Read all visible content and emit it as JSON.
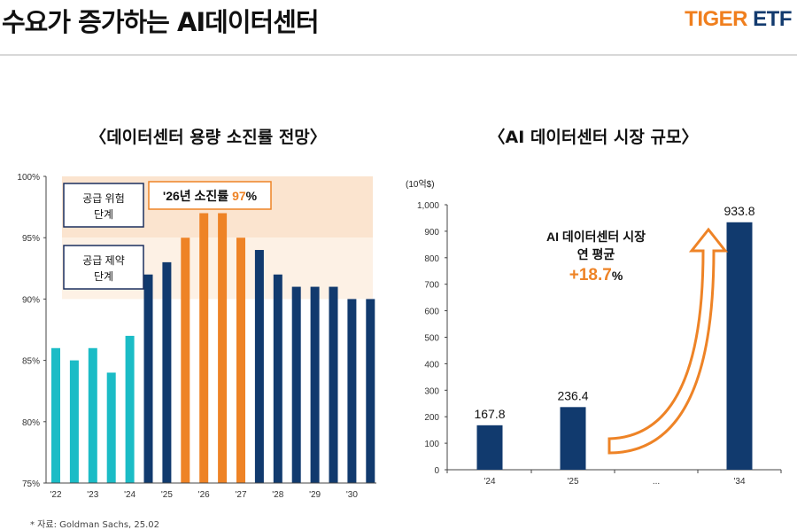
{
  "header": {
    "title": "수요가 증가하는 AI데이터센터",
    "logo_primary": "TIGER",
    "logo_secondary": "ETF"
  },
  "source": "* 자료: Goldman Sachs, 25.02",
  "colors": {
    "cyan": "#1bbcc6",
    "navy": "#113a6e",
    "orange": "#ee8326",
    "band_risk": "#fbe4cf",
    "band_constraint": "#fdf1e5"
  },
  "chart_data": [
    {
      "type": "bar",
      "title": "〈데이터센터 용량 소진률 전망〉",
      "ylim": [
        75,
        100
      ],
      "yticks": [
        "75%",
        "80%",
        "85%",
        "90%",
        "95%",
        "100%"
      ],
      "ytick_values": [
        75,
        80,
        85,
        90,
        95,
        100
      ],
      "xtick_labels": [
        "'22",
        "'23",
        "'24",
        "'25",
        "'26",
        "'27",
        "'28",
        "'29",
        "'30"
      ],
      "values": [
        86,
        85,
        86,
        84,
        87,
        92,
        93,
        95,
        97,
        97,
        95,
        94,
        92,
        91,
        91,
        91,
        90,
        90
      ],
      "bar_colors": [
        "cyan",
        "cyan",
        "cyan",
        "cyan",
        "cyan",
        "navy",
        "navy",
        "orange",
        "orange",
        "orange",
        "orange",
        "navy",
        "navy",
        "navy",
        "navy",
        "navy",
        "navy",
        "navy"
      ],
      "bands": [
        {
          "label": "공급 위험\n단계",
          "line1": "공급 위험",
          "line2": "단계",
          "range": [
            95,
            100
          ]
        },
        {
          "label": "공급 제약\n단계",
          "line1": "공급 제약",
          "line2": "단계",
          "range": [
            90,
            95
          ]
        }
      ],
      "annotation": {
        "prefix": "'26년 소진률 ",
        "highlight": "97",
        "suffix": "%"
      }
    },
    {
      "type": "bar",
      "title": "〈AI 데이터센터 시장 규모〉",
      "unit": "(10억$)",
      "ylim": [
        0,
        1000
      ],
      "yticks": [
        "0",
        "100",
        "200",
        "300",
        "400",
        "500",
        "600",
        "700",
        "800",
        "900",
        "1,000"
      ],
      "ytick_values": [
        0,
        100,
        200,
        300,
        400,
        500,
        600,
        700,
        800,
        900,
        1000
      ],
      "categories": [
        "'24",
        "'25",
        "...",
        "'34"
      ],
      "values": [
        167.8,
        236.4,
        null,
        933.8
      ],
      "data_labels": [
        "167.8",
        "236.4",
        "",
        "933.8"
      ],
      "annotation": {
        "line1": "AI 데이터센터 시장",
        "line2": "연 평균",
        "highlight": "+18.7",
        "suffix": "%"
      }
    }
  ]
}
